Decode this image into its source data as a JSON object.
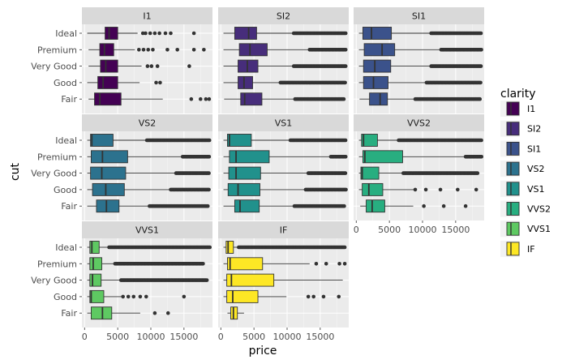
{
  "chart_data": {
    "type": "boxplot",
    "facet_by": "clarity",
    "xlabel": "price",
    "ylabel": "cut",
    "xlim": [
      -400,
      19300
    ],
    "x_ticks": [
      0,
      5000,
      10000,
      15000
    ],
    "x_tick_labels": [
      "0",
      "5000",
      "10000",
      "15000"
    ],
    "categories": [
      "Ideal",
      "Premium",
      "Very Good",
      "Good",
      "Fair"
    ],
    "legend_title": "clarity",
    "legend_position": "right",
    "grid": true,
    "panels": [
      {
        "label": "I1",
        "color": "#440154",
        "boxes": [
          {
            "cut": "Ideal",
            "q1": 3100,
            "median": 3700,
            "q3": 5000,
            "whisker_low": 400,
            "whisker_high": 8000,
            "outliers": [
              8800,
              9200,
              9900,
              10600,
              11300,
              12200,
              13000,
              16500
            ]
          },
          {
            "cut": "Premium",
            "q1": 2300,
            "median": 3000,
            "q3": 4400,
            "whisker_low": 600,
            "whisker_high": 7600,
            "outliers": [
              8200,
              8900,
              9600,
              10300,
              12500,
              14000,
              16500,
              18000
            ]
          },
          {
            "cut": "Very Good",
            "q1": 2400,
            "median": 3200,
            "q3": 5000,
            "whisker_low": 600,
            "whisker_high": 8600,
            "outliers": [
              9500,
              10100,
              11000,
              15800
            ]
          },
          {
            "cut": "Good",
            "q1": 2000,
            "median": 2800,
            "q3": 5000,
            "whisker_low": 400,
            "whisker_high": 8300,
            "outliers": [
              10800,
              11400
            ]
          },
          {
            "cut": "Fair",
            "q1": 1500,
            "median": 2300,
            "q3": 5500,
            "whisker_low": 600,
            "whisker_high": 11800,
            "outliers": [
              16100,
              17500,
              18300,
              18800
            ]
          }
        ]
      },
      {
        "label": "SI2",
        "color": "#472d7b",
        "boxes": [
          {
            "cut": "Ideal",
            "q1": 2100,
            "median": 4200,
            "q3": 5400,
            "whisker_low": 400,
            "whisker_high": 10900,
            "outliers": [
              11000,
              18900
            ]
          },
          {
            "cut": "Premium",
            "q1": 2800,
            "median": 4400,
            "q3": 7000,
            "whisker_low": 400,
            "whisker_high": 13300,
            "outliers": [
              13400,
              18900
            ]
          },
          {
            "cut": "Very Good",
            "q1": 2600,
            "median": 4000,
            "q3": 5600,
            "whisker_low": 400,
            "whisker_high": 10900,
            "outliers": [
              11000,
              18900
            ]
          },
          {
            "cut": "Good",
            "q1": 2600,
            "median": 3500,
            "q3": 4800,
            "whisker_low": 400,
            "whisker_high": 8900,
            "outliers": [
              9000,
              18900
            ]
          },
          {
            "cut": "Fair",
            "q1": 3000,
            "median": 3600,
            "q3": 6200,
            "whisker_low": 500,
            "whisker_high": 11000,
            "outliers": [
              11200,
              18700
            ]
          }
        ]
      },
      {
        "label": "SI1",
        "color": "#3b528b",
        "boxes": [
          {
            "cut": "Ideal",
            "q1": 1000,
            "median": 2300,
            "q3": 5300,
            "whisker_low": 400,
            "whisker_high": 11200,
            "outliers": [
              11300,
              18900
            ]
          },
          {
            "cut": "Premium",
            "q1": 1200,
            "median": 3900,
            "q3": 5800,
            "whisker_low": 400,
            "whisker_high": 12700,
            "outliers": [
              12800,
              18900
            ]
          },
          {
            "cut": "Very Good",
            "q1": 1100,
            "median": 2800,
            "q3": 5200,
            "whisker_low": 400,
            "whisker_high": 11200,
            "outliers": [
              11300,
              18900
            ]
          },
          {
            "cut": "Good",
            "q1": 1100,
            "median": 2600,
            "q3": 4800,
            "whisker_low": 400,
            "whisker_high": 10500,
            "outliers": [
              10600,
              18900
            ]
          },
          {
            "cut": "Fair",
            "q1": 2000,
            "median": 3600,
            "q3": 4700,
            "whisker_low": 500,
            "whisker_high": 8800,
            "outliers": [
              8900,
              18800
            ]
          }
        ]
      },
      {
        "label": "VS2",
        "color": "#2c728e",
        "boxes": [
          {
            "cut": "Ideal",
            "q1": 900,
            "median": 1100,
            "q3": 4300,
            "whisker_low": 400,
            "whisker_high": 9300,
            "outliers": [
              9400,
              18900
            ]
          },
          {
            "cut": "Premium",
            "q1": 1000,
            "median": 2700,
            "q3": 6500,
            "whisker_low": 400,
            "whisker_high": 14700,
            "outliers": [
              14800,
              18900
            ]
          },
          {
            "cut": "Very Good",
            "q1": 900,
            "median": 2600,
            "q3": 6200,
            "whisker_low": 400,
            "whisker_high": 13700,
            "outliers": [
              13800,
              18900
            ]
          },
          {
            "cut": "Good",
            "q1": 1200,
            "median": 3200,
            "q3": 6000,
            "whisker_low": 400,
            "whisker_high": 12900,
            "outliers": [
              13000,
              18900
            ]
          },
          {
            "cut": "Fair",
            "q1": 1800,
            "median": 3300,
            "q3": 5200,
            "whisker_low": 400,
            "whisker_high": 9700,
            "outliers": [
              9800,
              18600
            ]
          }
        ]
      },
      {
        "label": "VS1",
        "color": "#21918c",
        "boxes": [
          {
            "cut": "Ideal",
            "q1": 1000,
            "median": 1300,
            "q3": 4600,
            "whisker_low": 400,
            "whisker_high": 10400,
            "outliers": [
              10500,
              18900
            ]
          },
          {
            "cut": "Premium",
            "q1": 1300,
            "median": 2300,
            "q3": 7300,
            "whisker_low": 400,
            "whisker_high": 16400,
            "outliers": [
              16600,
              18900
            ]
          },
          {
            "cut": "Very Good",
            "q1": 1200,
            "median": 2300,
            "q3": 6000,
            "whisker_low": 400,
            "whisker_high": 13100,
            "outliers": [
              13200,
              18900
            ]
          },
          {
            "cut": "Good",
            "q1": 1100,
            "median": 2600,
            "q3": 5900,
            "whisker_low": 400,
            "whisker_high": 12700,
            "outliers": [
              12800,
              18900
            ]
          },
          {
            "cut": "Fair",
            "q1": 2100,
            "median": 2900,
            "q3": 5800,
            "whisker_low": 400,
            "whisker_high": 11000,
            "outliers": [
              11100,
              18700
            ]
          }
        ]
      },
      {
        "label": "VVS2",
        "color": "#28ae80",
        "boxes": [
          {
            "cut": "Ideal",
            "q1": 800,
            "median": 1100,
            "q3": 3200,
            "whisker_low": 400,
            "whisker_high": 6300,
            "outliers": [
              6400,
              18900
            ]
          },
          {
            "cut": "Premium",
            "q1": 1000,
            "median": 1300,
            "q3": 7000,
            "whisker_low": 400,
            "whisker_high": 16300,
            "outliers": [
              16500,
              18900
            ]
          },
          {
            "cut": "Very Good",
            "q1": 700,
            "median": 900,
            "q3": 3400,
            "whisker_low": 400,
            "whisker_high": 7000,
            "outliers": [
              7100,
              18300
            ]
          },
          {
            "cut": "Good",
            "q1": 900,
            "median": 1900,
            "q3": 4000,
            "whisker_low": 400,
            "whisker_high": 8700,
            "outliers": [
              8900,
              10500,
              12700,
              15300,
              18100
            ]
          },
          {
            "cut": "Fair",
            "q1": 1500,
            "median": 2400,
            "q3": 4300,
            "whisker_low": 600,
            "whisker_high": 8600,
            "outliers": [
              10200,
              13200,
              16500
            ]
          }
        ]
      },
      {
        "label": "VVS1",
        "color": "#5ec962",
        "boxes": [
          {
            "cut": "Ideal",
            "q1": 800,
            "median": 1100,
            "q3": 2200,
            "whisker_low": 400,
            "whisker_high": 3600,
            "outliers": [
              3700,
              18900
            ]
          },
          {
            "cut": "Premium",
            "q1": 800,
            "median": 1300,
            "q3": 2600,
            "whisker_low": 400,
            "whisker_high": 4500,
            "outliers": [
              4600,
              18000
            ]
          },
          {
            "cut": "Very Good",
            "q1": 800,
            "median": 1200,
            "q3": 2500,
            "whisker_low": 400,
            "whisker_high": 5400,
            "outliers": [
              5500,
              18500
            ]
          },
          {
            "cut": "Good",
            "q1": 800,
            "median": 1000,
            "q3": 2900,
            "whisker_low": 400,
            "whisker_high": 5700,
            "outliers": [
              5800,
              6600,
              7400,
              8400,
              9300,
              15000
            ]
          },
          {
            "cut": "Fair",
            "q1": 1000,
            "median": 2700,
            "q3": 4100,
            "whisker_low": 400,
            "whisker_high": 8400,
            "outliers": [
              10600,
              12600
            ]
          }
        ]
      },
      {
        "label": "IF",
        "color": "#fde725",
        "boxes": [
          {
            "cut": "Ideal",
            "q1": 800,
            "median": 1100,
            "q3": 1900,
            "whisker_low": 400,
            "whisker_high": 2500,
            "outliers": [
              2700,
              18800
            ]
          },
          {
            "cut": "Premium",
            "q1": 1000,
            "median": 1400,
            "q3": 6300,
            "whisker_low": 400,
            "whisker_high": 13400,
            "outliers": [
              14400,
              15900,
              17900,
              18700
            ]
          },
          {
            "cut": "Very Good",
            "q1": 900,
            "median": 1600,
            "q3": 8000,
            "whisker_low": 400,
            "whisker_high": 18400,
            "outliers": []
          },
          {
            "cut": "Good",
            "q1": 900,
            "median": 1800,
            "q3": 5600,
            "whisker_low": 400,
            "whisker_high": 9900,
            "outliers": [
              13200,
              14000,
              15500,
              17800
            ]
          },
          {
            "cut": "Fair",
            "q1": 1500,
            "median": 1900,
            "q3": 2500,
            "whisker_low": 1000,
            "whisker_high": 3500,
            "outliers": []
          }
        ]
      }
    ],
    "legend": [
      {
        "label": "I1",
        "color": "#440154"
      },
      {
        "label": "SI2",
        "color": "#472d7b"
      },
      {
        "label": "SI1",
        "color": "#3b528b"
      },
      {
        "label": "VS2",
        "color": "#2c728e"
      },
      {
        "label": "VS1",
        "color": "#21918c"
      },
      {
        "label": "VVS2",
        "color": "#28ae80"
      },
      {
        "label": "VVS1",
        "color": "#5ec962"
      },
      {
        "label": "IF",
        "color": "#fde725"
      }
    ]
  }
}
